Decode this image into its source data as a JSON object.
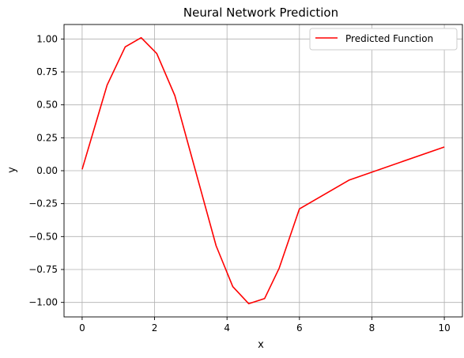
{
  "chart_data": {
    "type": "line",
    "title": "Neural Network Prediction",
    "xlabel": "x",
    "ylabel": "y",
    "xlim": [
      -0.5,
      10.5
    ],
    "ylim": [
      -1.11,
      1.11
    ],
    "x_ticks": [
      0,
      2,
      4,
      6,
      8,
      10
    ],
    "x_tick_labels": [
      "0",
      "2",
      "4",
      "6",
      "8",
      "10"
    ],
    "y_ticks": [
      1.0,
      0.75,
      0.5,
      0.25,
      0.0,
      -0.25,
      -0.5,
      -0.75,
      -1.0
    ],
    "y_tick_labels": [
      "1.00",
      "0.75",
      "0.50",
      "0.25",
      "0.00",
      "−0.25",
      "−0.50",
      "−0.75",
      "−1.00"
    ],
    "grid": true,
    "legend_position": "top-right",
    "series": [
      {
        "name": "Predicted Function",
        "color": "#ff0000",
        "x": [
          0.0,
          0.69,
          1.19,
          1.63,
          2.06,
          2.56,
          3.13,
          3.7,
          4.16,
          4.6,
          5.04,
          5.44,
          6.0,
          7.38,
          10.0
        ],
        "y": [
          0.01,
          0.65,
          0.94,
          1.01,
          0.89,
          0.57,
          0.0,
          -0.57,
          -0.88,
          -1.01,
          -0.97,
          -0.74,
          -0.29,
          -0.07,
          0.18
        ]
      }
    ]
  }
}
